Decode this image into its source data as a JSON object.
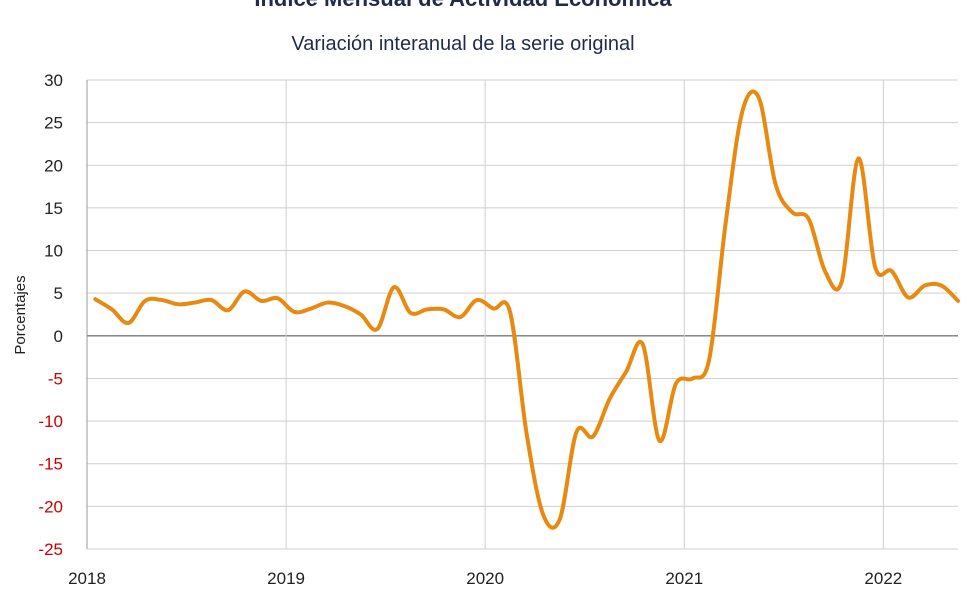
{
  "chart_data": {
    "type": "line",
    "title": "Índice Mensual de  Actividad Económica",
    "subtitle": "Variación interanual de la serie original",
    "ylabel": "Porcentajes",
    "xlabel": "",
    "ylim": [
      -25,
      30
    ],
    "yticks": [
      30,
      25,
      20,
      15,
      10,
      5,
      0,
      -5,
      -10,
      -15,
      -20,
      -25
    ],
    "xticks": [
      {
        "label": "2018",
        "value": 0
      },
      {
        "label": "2019",
        "value": 12
      },
      {
        "label": "2020",
        "value": 24
      },
      {
        "label": "2021",
        "value": 36
      },
      {
        "label": "2022",
        "value": 48
      }
    ],
    "xlim": [
      0,
      52.5
    ],
    "grid": true,
    "colors": {
      "line": "#e88a12",
      "negative_tick": "#cc0000",
      "positive_tick": "#222222",
      "title": "#1f2a4d"
    },
    "series": [
      {
        "x": [
          0.5,
          1.5,
          2.5,
          3.5,
          4.5,
          5.5,
          6.5,
          7.5,
          8.5,
          9.5,
          10.5,
          11.5,
          12.5,
          13.5,
          14.5,
          15.5,
          16.5,
          17.5,
          18.5,
          19.5,
          20.5,
          21.5,
          22.5,
          23.5,
          24.5,
          25.5,
          26.5,
          27.5,
          28.5,
          29.5,
          30.5,
          31.5,
          32.5,
          33.5,
          34.5,
          35.5,
          36.5,
          37.5,
          38.5,
          39.5,
          40.5,
          41.5,
          42.5,
          43.5,
          44.5,
          45.5,
          46.5,
          47.5,
          48.5,
          49.5,
          50.5,
          51.5,
          52.5
        ],
        "values": [
          4.3,
          3.1,
          1.5,
          4.1,
          4.2,
          3.7,
          3.9,
          4.2,
          3.0,
          5.2,
          4.1,
          4.4,
          2.8,
          3.2,
          3.9,
          3.5,
          2.5,
          0.8,
          5.7,
          2.7,
          3.1,
          3.1,
          2.2,
          4.2,
          3.2,
          2.8,
          -11.5,
          -21.0,
          -21.5,
          -11.3,
          -11.8,
          -7.4,
          -4.2,
          -1.0,
          -12.3,
          -5.6,
          -5.0,
          -2.8,
          13.3,
          26.3,
          27.9,
          17.8,
          14.5,
          13.7,
          7.5,
          6.4,
          20.8,
          8.1,
          7.6,
          4.5,
          5.9,
          5.9,
          4.1
        ]
      }
    ]
  }
}
